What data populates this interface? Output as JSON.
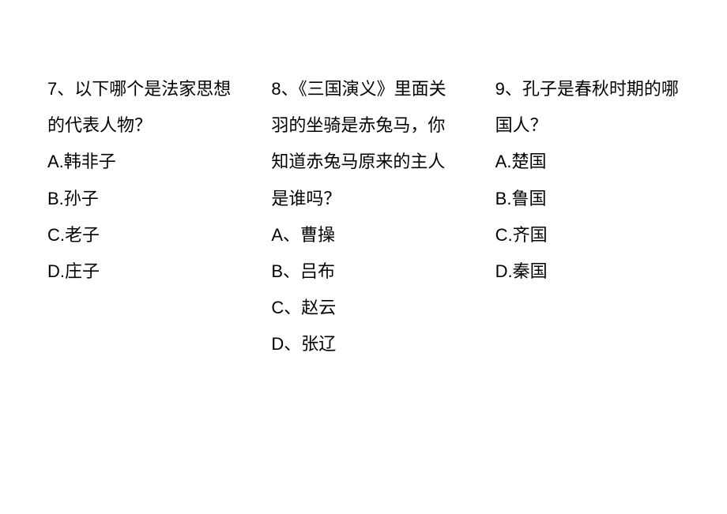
{
  "questions": [
    {
      "prompt": "7、以下哪个是法家思想的代表人物？",
      "options": [
        "A.韩非子",
        "B.孙子",
        "C.老子",
        "D.庄子"
      ]
    },
    {
      "prompt": "8、《三国演义》里面关羽的坐骑是赤兔马，你知道赤兔马原来的主人是谁吗？",
      "options": [
        "A、曹操",
        "B、吕布",
        "C、赵云",
        "D、张辽"
      ]
    },
    {
      "prompt": "9、孔子是春秋时期的哪国人？",
      "options": [
        "A.楚国",
        "B.鲁国",
        "C.齐国",
        "D.秦国"
      ]
    }
  ]
}
